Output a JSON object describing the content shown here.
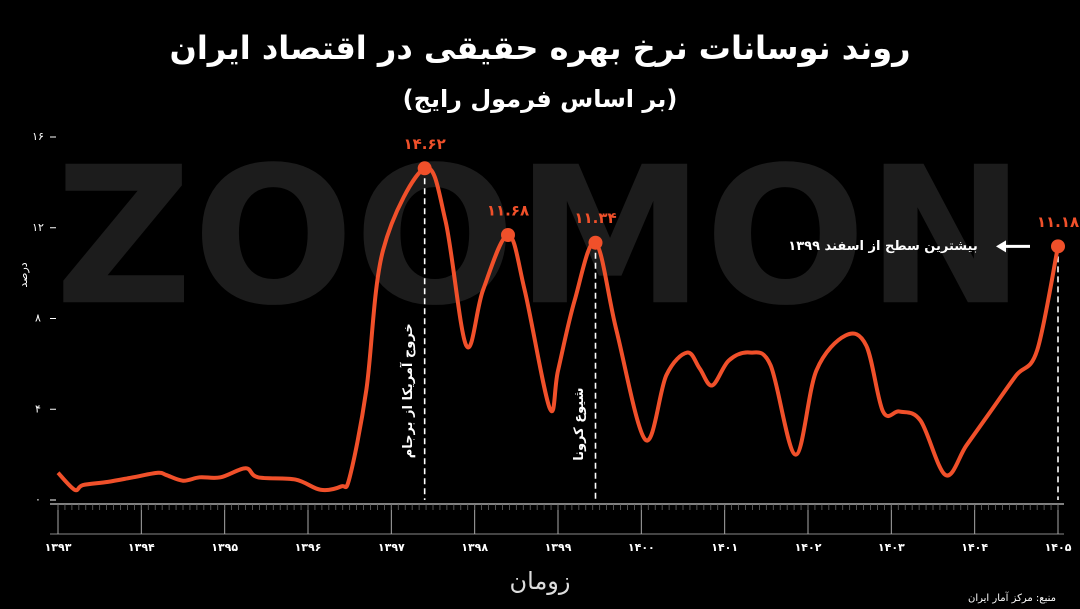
{
  "chart_data": {
    "type": "line",
    "title": "روند نوسانات نرخ بهره حقیقی در اقتصاد ایران",
    "subtitle": "(بر اساس فرمول رایج)",
    "y_label": "درصد",
    "watermark": "ZOOMON",
    "logo": "زومان",
    "source": "منبع: مرکز آمار ایران",
    "color": "#f0502a",
    "x": [
      1393.0,
      1393.2,
      1393.3,
      1393.6,
      1393.9,
      1394.2,
      1394.3,
      1394.5,
      1394.7,
      1394.95,
      1395.25,
      1395.4,
      1395.85,
      1396.15,
      1396.4,
      1396.5,
      1396.7,
      1396.9,
      1397.4,
      1397.65,
      1397.9,
      1398.1,
      1398.4,
      1398.6,
      1398.9,
      1399.0,
      1399.2,
      1399.45,
      1399.7,
      1400.05,
      1400.3,
      1400.55,
      1400.7,
      1400.85,
      1401.05,
      1401.3,
      1401.55,
      1401.85,
      1402.1,
      1402.45,
      1402.7,
      1402.9,
      1403.1,
      1403.35,
      1403.65,
      1403.9,
      1404.2,
      1404.5,
      1404.75,
      1405.0
    ],
    "values": [
      1.2,
      0.45,
      0.66,
      0.8,
      1.0,
      1.2,
      1.1,
      0.85,
      1.0,
      1.0,
      1.4,
      1.0,
      0.9,
      0.45,
      0.6,
      1.0,
      4.85,
      11.0,
      14.62,
      12.3,
      6.8,
      9.25,
      11.68,
      9.25,
      4.05,
      5.7,
      8.8,
      11.34,
      7.5,
      2.65,
      5.5,
      6.5,
      5.8,
      5.05,
      6.15,
      6.5,
      5.95,
      2.0,
      5.7,
      7.25,
      6.8,
      3.9,
      3.9,
      3.5,
      1.1,
      2.4,
      3.95,
      5.5,
      6.6,
      11.18
    ],
    "value_labels": [
      null,
      null,
      null,
      null,
      null,
      null,
      null,
      null,
      null,
      null,
      null,
      null,
      null,
      null,
      null,
      null,
      null,
      null,
      "۱۴.۶۲",
      null,
      null,
      null,
      "۱۱.۶۸",
      null,
      null,
      null,
      null,
      "۱۱.۳۴",
      null,
      null,
      null,
      null,
      null,
      null,
      null,
      null,
      null,
      null,
      null,
      null,
      null,
      null,
      null,
      null,
      null,
      null,
      null,
      null,
      null,
      "۱۱.۱۸"
    ],
    "xlim": [
      1393,
      1405
    ],
    "xticks": [
      {
        "value": 1393,
        "label": "۱۳۹۳"
      },
      {
        "value": 1394,
        "label": "۱۳۹۴"
      },
      {
        "value": 1395,
        "label": "۱۳۹۵"
      },
      {
        "value": 1396,
        "label": "۱۳۹۶"
      },
      {
        "value": 1397,
        "label": "۱۳۹۷"
      },
      {
        "value": 1398,
        "label": "۱۳۹۸"
      },
      {
        "value": 1399,
        "label": "۱۳۹۹"
      },
      {
        "value": 1400,
        "label": "۱۴۰۰"
      },
      {
        "value": 1401,
        "label": "۱۴۰۱"
      },
      {
        "value": 1402,
        "label": "۱۴۰۲"
      },
      {
        "value": 1403,
        "label": "۱۴۰۳"
      },
      {
        "value": 1404,
        "label": "۱۴۰۴"
      },
      {
        "value": 1405,
        "label": "۱۴۰۵"
      }
    ],
    "ylim": [
      0,
      16
    ],
    "yticks": [
      {
        "value": 0,
        "label": "۰"
      },
      {
        "value": 4,
        "label": "۴"
      },
      {
        "value": 8,
        "label": "۸"
      },
      {
        "value": 12,
        "label": "۱۲"
      },
      {
        "value": 16,
        "label": "۱۶"
      }
    ],
    "annotations": [
      {
        "text": "خروج آمریکا از برجام",
        "x": 1397.4,
        "orientation": "vertical"
      },
      {
        "text": "شیوع کرونا",
        "x": 1399.45,
        "orientation": "vertical"
      },
      {
        "text": "بیشترین سطح از اسفند ۱۳۹۹",
        "x": 1405.0,
        "orientation": "horizontal"
      }
    ]
  }
}
